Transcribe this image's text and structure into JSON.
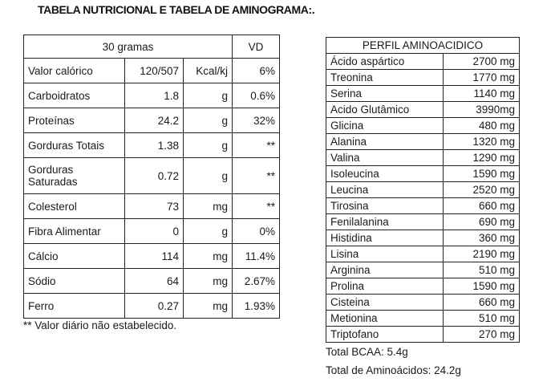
{
  "title": "TABELA NUTRICIONAL E TABELA DE AMINOGRAMA:.",
  "nutrition": {
    "header": {
      "portion": "30 gramas",
      "vd": "VD"
    },
    "rows": [
      {
        "name": "Valor calórico",
        "value": "120/507",
        "unit": "Kcal/kj",
        "vd": "6%"
      },
      {
        "name": "Carboidratos",
        "value": "1.8",
        "unit": "g",
        "vd": "0.6%"
      },
      {
        "name": "Proteínas",
        "value": "24.2",
        "unit": "g",
        "vd": "32%"
      },
      {
        "name": "Gorduras Totais",
        "value": "1.38",
        "unit": "g",
        "vd": "**"
      },
      {
        "name_line1": "Gorduras",
        "name_line2": "Saturadas",
        "value": "0.72",
        "unit": "g",
        "vd": "**"
      },
      {
        "name": "Colesterol",
        "value": "73",
        "unit": "mg",
        "vd": "**"
      },
      {
        "name": "Fibra Alimentar",
        "value": "0",
        "unit": "g",
        "vd": "0%"
      },
      {
        "name": "Cálcio",
        "value": "114",
        "unit": "mg",
        "vd": "11.4%"
      },
      {
        "name": "Sódio",
        "value": "64",
        "unit": "mg",
        "vd": "2.67%"
      },
      {
        "name": "Ferro",
        "value": "0.27",
        "unit": "mg",
        "vd": "1.93%"
      }
    ],
    "footnote": "** Valor diário não estabelecido."
  },
  "amino": {
    "header": "PERFIL AMINOACIDICO",
    "rows": [
      {
        "name": "Ácido aspártico",
        "value": "2700 mg"
      },
      {
        "name": "Treonina",
        "value": "1770 mg"
      },
      {
        "name": "Serina",
        "value": "1140 mg"
      },
      {
        "name": "Acido Glutâmico",
        "value": "3990mg"
      },
      {
        "name": "Glicina",
        "value": "480 mg"
      },
      {
        "name": "Alanina",
        "value": "1320 mg"
      },
      {
        "name": "Valina",
        "value": "1290 mg"
      },
      {
        "name": "Isoleucina",
        "value": "1590 mg"
      },
      {
        "name": "Leucina",
        "value": "2520 mg"
      },
      {
        "name": "Tirosina",
        "value": "660 mg"
      },
      {
        "name": "Fenilalanina",
        "value": "690 mg"
      },
      {
        "name": "Histidina",
        "value": "360 mg"
      },
      {
        "name": "Lisina",
        "value": "2190 mg"
      },
      {
        "name": "Arginina",
        "value": "510 mg"
      },
      {
        "name": "Prolina",
        "value": "1590 mg"
      },
      {
        "name": "Cisteina",
        "value": "660 mg"
      },
      {
        "name": "Metionina",
        "value": "510 mg"
      },
      {
        "name": "Triptofano",
        "value": "270 mg"
      }
    ],
    "total_bcaa": "Total BCAA: 5.4g",
    "total_amino": "Total de Aminoácidos: 24.2g"
  }
}
